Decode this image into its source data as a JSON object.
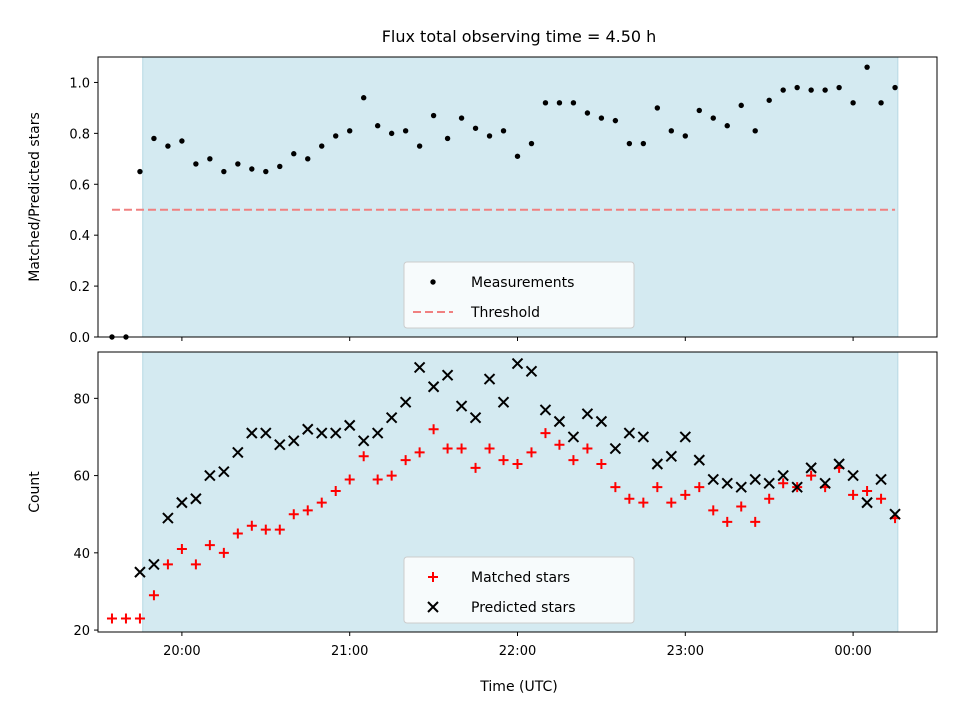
{
  "title": "Flux total observing time = 4.50 h",
  "xlabel": "Time (UTC)",
  "colors": {
    "observing_shade": "#d4eaf1",
    "threshold": "#f08080",
    "matched": "#ff0000",
    "predicted": "#000000",
    "measurement": "#000000"
  },
  "chart_data": [
    {
      "type": "scatter",
      "ylabel": "Matched/Predicted stars",
      "xlim": [
        "19:30",
        "00:30"
      ],
      "ylim": [
        0,
        1.1
      ],
      "yticks": [
        "0.0",
        "0.2",
        "0.4",
        "0.6",
        "0.8",
        "1.0"
      ],
      "shaded_interval": [
        "19:46",
        "00:16"
      ],
      "legend": {
        "placement": "lower-center",
        "entries": [
          "Measurements",
          "Threshold"
        ]
      },
      "threshold": {
        "name": "Threshold",
        "value": 0.5,
        "x_range": [
          "19:35",
          "00:15"
        ]
      },
      "series": [
        {
          "name": "Measurements",
          "x": [
            "19:35",
            "19:40",
            "19:45",
            "19:50",
            "19:55",
            "20:00",
            "20:05",
            "20:10",
            "20:15",
            "20:20",
            "20:25",
            "20:30",
            "20:35",
            "20:40",
            "20:45",
            "20:50",
            "20:55",
            "21:00",
            "21:05",
            "21:10",
            "21:15",
            "21:20",
            "21:25",
            "21:30",
            "21:35",
            "21:40",
            "21:45",
            "21:50",
            "21:55",
            "22:00",
            "22:05",
            "22:10",
            "22:15",
            "22:20",
            "22:25",
            "22:30",
            "22:35",
            "22:40",
            "22:45",
            "22:50",
            "22:55",
            "23:00",
            "23:05",
            "23:10",
            "23:15",
            "23:20",
            "23:25",
            "23:30",
            "23:35",
            "23:40",
            "23:45",
            "23:50",
            "23:55",
            "00:00",
            "00:05",
            "00:10",
            "00:15"
          ],
          "values": [
            0.0,
            0.0,
            0.65,
            0.78,
            0.75,
            0.77,
            0.68,
            0.7,
            0.65,
            0.68,
            0.66,
            0.65,
            0.67,
            0.72,
            0.7,
            0.75,
            0.79,
            0.81,
            0.94,
            0.83,
            0.8,
            0.81,
            0.75,
            0.87,
            0.78,
            0.86,
            0.82,
            0.79,
            0.81,
            0.71,
            0.76,
            0.92,
            0.92,
            0.92,
            0.88,
            0.86,
            0.85,
            0.76,
            0.76,
            0.9,
            0.81,
            0.79,
            0.89,
            0.86,
            0.83,
            0.91,
            0.81,
            0.93,
            0.97,
            0.98,
            0.97,
            0.97,
            0.98,
            0.92,
            1.06,
            0.92,
            0.98
          ]
        }
      ]
    },
    {
      "type": "scatter",
      "ylabel": "Count",
      "xlim": [
        "19:30",
        "00:30"
      ],
      "ylim": [
        19.5,
        92
      ],
      "yticks": [
        "20",
        "40",
        "60",
        "80"
      ],
      "xticks": [
        "20:00",
        "21:00",
        "22:00",
        "23:00",
        "00:00"
      ],
      "shaded_interval": [
        "19:46",
        "00:16"
      ],
      "legend": {
        "placement": "lower-center",
        "entries": [
          "Matched stars",
          "Predicted stars"
        ]
      },
      "series": [
        {
          "name": "Matched stars",
          "marker": "+",
          "x": [
            "19:35",
            "19:40",
            "19:45",
            "19:50",
            "19:55",
            "20:00",
            "20:05",
            "20:10",
            "20:15",
            "20:20",
            "20:25",
            "20:30",
            "20:35",
            "20:40",
            "20:45",
            "20:50",
            "20:55",
            "21:00",
            "21:05",
            "21:10",
            "21:15",
            "21:20",
            "21:25",
            "21:30",
            "21:35",
            "21:40",
            "21:45",
            "21:50",
            "21:55",
            "22:00",
            "22:05",
            "22:10",
            "22:15",
            "22:20",
            "22:25",
            "22:30",
            "22:35",
            "22:40",
            "22:45",
            "22:50",
            "22:55",
            "23:00",
            "23:05",
            "23:10",
            "23:15",
            "23:20",
            "23:25",
            "23:30",
            "23:35",
            "23:40",
            "23:45",
            "23:50",
            "23:55",
            "00:00",
            "00:05",
            "00:10",
            "00:15"
          ],
          "values": [
            23,
            23,
            23,
            29,
            37,
            41,
            37,
            42,
            40,
            45,
            47,
            46,
            46,
            50,
            51,
            53,
            56,
            59,
            65,
            59,
            60,
            64,
            66,
            72,
            67,
            67,
            62,
            67,
            64,
            63,
            66,
            71,
            68,
            64,
            67,
            63,
            57,
            54,
            53,
            57,
            53,
            55,
            57,
            51,
            48,
            52,
            48,
            54,
            58,
            57,
            60,
            57,
            62,
            55,
            56,
            54,
            49
          ]
        },
        {
          "name": "Predicted stars",
          "marker": "x",
          "x": [
            "19:45",
            "19:50",
            "19:55",
            "20:00",
            "20:05",
            "20:10",
            "20:15",
            "20:20",
            "20:25",
            "20:30",
            "20:35",
            "20:40",
            "20:45",
            "20:50",
            "20:55",
            "21:00",
            "21:05",
            "21:10",
            "21:15",
            "21:20",
            "21:25",
            "21:30",
            "21:35",
            "21:40",
            "21:45",
            "21:50",
            "21:55",
            "22:00",
            "22:05",
            "22:10",
            "22:15",
            "22:20",
            "22:25",
            "22:30",
            "22:35",
            "22:40",
            "22:45",
            "22:50",
            "22:55",
            "23:00",
            "23:05",
            "23:10",
            "23:15",
            "23:20",
            "23:25",
            "23:30",
            "23:35",
            "23:40",
            "23:45",
            "23:50",
            "23:55",
            "00:00",
            "00:05",
            "00:10",
            "00:15"
          ],
          "values": [
            35,
            37,
            49,
            53,
            54,
            60,
            61,
            66,
            71,
            71,
            68,
            69,
            72,
            71,
            71,
            73,
            69,
            71,
            75,
            79,
            88,
            83,
            86,
            78,
            75,
            85,
            79,
            89,
            87,
            77,
            74,
            70,
            76,
            74,
            67,
            71,
            70,
            63,
            65,
            70,
            64,
            59,
            58,
            57,
            59,
            58,
            60,
            57,
            62,
            58,
            63,
            60,
            53,
            59,
            50
          ]
        }
      ]
    }
  ]
}
